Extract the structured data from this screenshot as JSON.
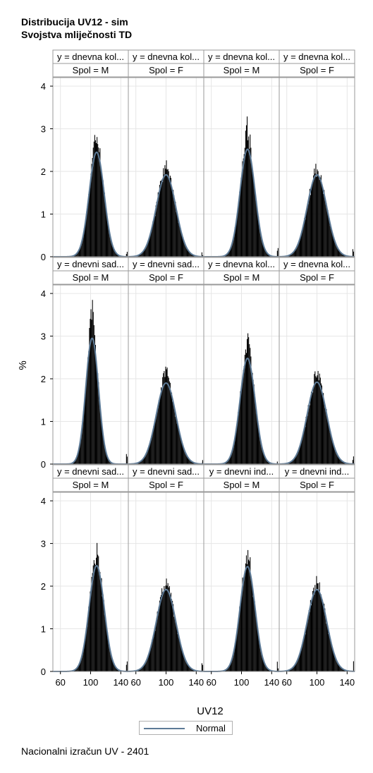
{
  "titles": {
    "line1": "Distribucija UV12 - sim",
    "line2": "Svojstva mliječnosti TD"
  },
  "footnote": "Nacionalni izračun UV - 2401",
  "colors": {
    "bars": "#000000",
    "normal_curve": "#5d7a96",
    "header_bg": "#ffffff",
    "grid": "#e6e6e6",
    "panel_border": "#9a9a9a"
  },
  "chart_data": {
    "type": "histogram-panel",
    "xlabel": "UV12",
    "ylabel": "%",
    "xlim": [
      50,
      150
    ],
    "ylim": [
      0,
      4.2
    ],
    "xticks": [
      60,
      100,
      140
    ],
    "yticks": [
      0,
      1,
      2,
      3,
      4
    ],
    "grid": true,
    "legend": {
      "position": "bottom-center",
      "entries": [
        "Normal"
      ]
    },
    "rows": [
      {
        "panels": [
          {
            "row_label": "y = dnevna kol...",
            "col_label": "Spol = M",
            "mean": 108,
            "sd": 10,
            "peak": 3.05,
            "curve_peak": 2.45
          },
          {
            "row_label": "y = dnevna kol...",
            "col_label": "Spol = F",
            "mean": 100,
            "sd": 13,
            "peak": 2.12,
            "curve_peak": 1.92
          },
          {
            "row_label": "y = dnevna kol...",
            "col_label": "Spol = M",
            "mean": 108,
            "sd": 10,
            "peak": 3.1,
            "curve_peak": 2.52
          },
          {
            "row_label": "y = dnevna kol...",
            "col_label": "Spol = F",
            "mean": 100,
            "sd": 13,
            "peak": 2.08,
            "curve_peak": 1.92
          }
        ]
      },
      {
        "panels": [
          {
            "row_label": "y = dnevni sad...",
            "col_label": "Spol = M",
            "mean": 102,
            "sd": 8.5,
            "peak": 3.78,
            "curve_peak": 2.95
          },
          {
            "row_label": "y = dnevni sad...",
            "col_label": "Spol = F",
            "mean": 100,
            "sd": 13,
            "peak": 2.22,
            "curve_peak": 1.9
          },
          {
            "row_label": "y = dnevna kol...",
            "col_label": "Spol = M",
            "mean": 108,
            "sd": 10,
            "peak": 2.9,
            "curve_peak": 2.48
          },
          {
            "row_label": "y = dnevna kol...",
            "col_label": "Spol = F",
            "mean": 100,
            "sd": 13,
            "peak": 2.12,
            "curve_peak": 1.92
          }
        ]
      },
      {
        "panels": [
          {
            "row_label": "y = dnevni sad...",
            "col_label": "Spol = M",
            "mean": 108,
            "sd": 10,
            "peak": 2.9,
            "curve_peak": 2.48
          },
          {
            "row_label": "y = dnevni sad...",
            "col_label": "Spol = F",
            "mean": 100,
            "sd": 13,
            "peak": 2.13,
            "curve_peak": 1.92
          },
          {
            "row_label": "y = dnevni ind...",
            "col_label": "Spol = M",
            "mean": 108,
            "sd": 10,
            "peak": 2.85,
            "curve_peak": 2.46
          },
          {
            "row_label": "y = dnevni ind...",
            "col_label": "Spol = F",
            "mean": 100,
            "sd": 13,
            "peak": 2.1,
            "curve_peak": 1.92
          }
        ]
      }
    ]
  }
}
